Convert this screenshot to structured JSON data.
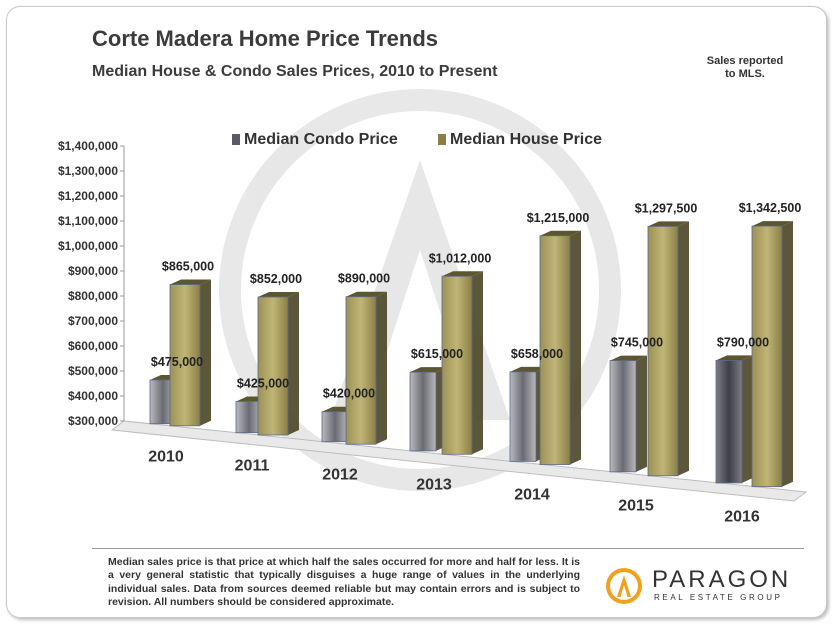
{
  "header": {
    "title": "Corte Madera Home Price Trends",
    "subtitle": "Median House & Condo Sales Prices, 2010 to Present",
    "note_line1": "Sales reported",
    "note_line2": "to MLS."
  },
  "footer": {
    "footnote": "Median sales price is that price at which half the sales occurred for more and half for less. It is a very general statistic that typically disguises a huge range of values in the underlying individual sales. Data from sources deemed reliable but may contain errors and is subject to revision. All numbers should be considered approximate.",
    "logo_name": "PARAGON",
    "logo_tagline": "REAL ESTATE GROUP"
  },
  "colors": {
    "condo": "#5a5a62",
    "house": "#8a8046",
    "gold": "#f0a21c"
  },
  "chart_data": {
    "type": "bar",
    "categories": [
      "2010",
      "2011",
      "2012",
      "2013",
      "2014",
      "2015",
      "2016"
    ],
    "series": [
      {
        "name": "Median Condo Price",
        "values": [
          475000,
          425000,
          420000,
          615000,
          658000,
          745000,
          790000
        ],
        "labels": [
          "$475,000",
          "$425,000",
          "$420,000",
          "$615,000",
          "$658,000",
          "$745,000",
          "$790,000"
        ]
      },
      {
        "name": "Median House Price",
        "values": [
          865000,
          852000,
          890000,
          1012000,
          1215000,
          1297500,
          1342500
        ],
        "labels": [
          "$865,000",
          "$852,000",
          "$890,000",
          "$1,012,000",
          "$1,215,000",
          "$1,297,500",
          "$1,342,500"
        ]
      }
    ],
    "ylim": [
      300000,
      1400000
    ],
    "yticks": [
      300000,
      400000,
      500000,
      600000,
      700000,
      800000,
      900000,
      1000000,
      1100000,
      1200000,
      1300000,
      1400000
    ],
    "ytick_labels": [
      "$300,000",
      "$400,000",
      "$500,000",
      "$600,000",
      "$700,000",
      "$800,000",
      "$900,000",
      "$1,000,000",
      "$1,100,000",
      "$1,200,000",
      "$1,300,000",
      "$1,400,000"
    ],
    "legend": "top",
    "grid": false,
    "style": "3d-perspective"
  }
}
